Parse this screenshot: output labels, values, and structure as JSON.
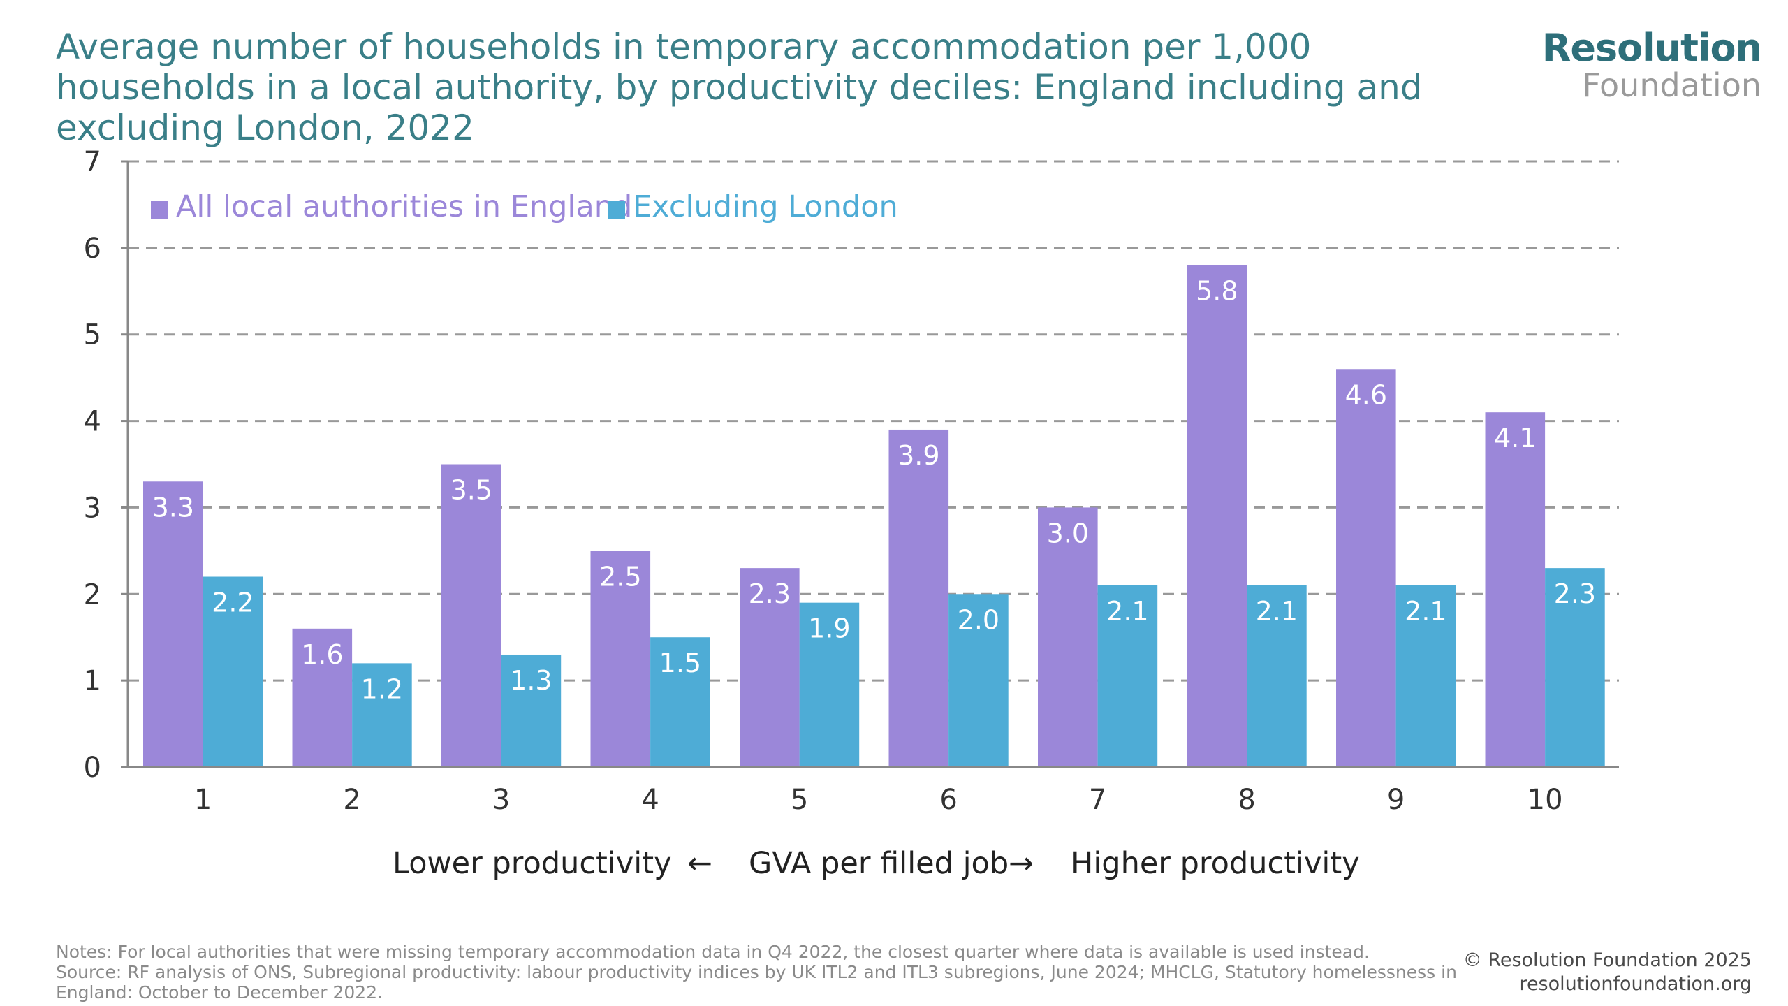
{
  "title": "Average number of households in temporary accommodation per 1,000 households in a local authority, by productivity deciles: England including and excluding London, 2022",
  "logo": {
    "top": "Resolution",
    "bottom": "Foundation"
  },
  "colors": {
    "series_1": "#9b87d9",
    "series_2": "#4eacd6",
    "grid": "#999999",
    "axis": "#888888",
    "title": "#3a7f88"
  },
  "chart_data": {
    "type": "bar",
    "categories": [
      "1",
      "2",
      "3",
      "4",
      "5",
      "6",
      "7",
      "8",
      "9",
      "10"
    ],
    "series": [
      {
        "name": "All local authorities in England",
        "values": [
          3.3,
          1.6,
          3.5,
          2.5,
          2.3,
          3.9,
          3.0,
          5.8,
          4.6,
          4.1
        ]
      },
      {
        "name": "Excluding London",
        "values": [
          2.2,
          1.2,
          1.3,
          1.5,
          1.9,
          2.0,
          2.1,
          2.1,
          2.1,
          2.3
        ]
      }
    ],
    "labels": [
      [
        "3.3",
        "1.6",
        "3.5",
        "2.5",
        "2.3",
        "3.9",
        "3.0",
        "5.8",
        "4.6",
        "4.1"
      ],
      [
        "2.2",
        "1.2",
        "1.3",
        "1.5",
        "1.9",
        "2.0",
        "2.1",
        "2.1",
        "2.1",
        "2.3"
      ]
    ],
    "ylim": [
      0,
      7
    ],
    "yticks": [
      0,
      1,
      2,
      3,
      4,
      5,
      6,
      7
    ],
    "grid": true,
    "legend_position": "top-left",
    "xlabel": {
      "left": "Lower productivity",
      "left_arrow": "←",
      "center": "GVA per filled job",
      "right_arrow": "→",
      "right": "Higher productivity"
    }
  },
  "notes": "Notes: For local authorities that were missing temporary accommodation data in Q4 2022, the closest quarter where data is available is used instead.",
  "source": "Source: RF analysis of ONS, Subregional productivity: labour productivity indices by UK ITL2 and ITL3 subregions, June 2024; MHCLG, Statutory homelessness in England: October to December 2022.",
  "copyright": "© Resolution Foundation 2025",
  "website": "resolutionfoundation.org"
}
